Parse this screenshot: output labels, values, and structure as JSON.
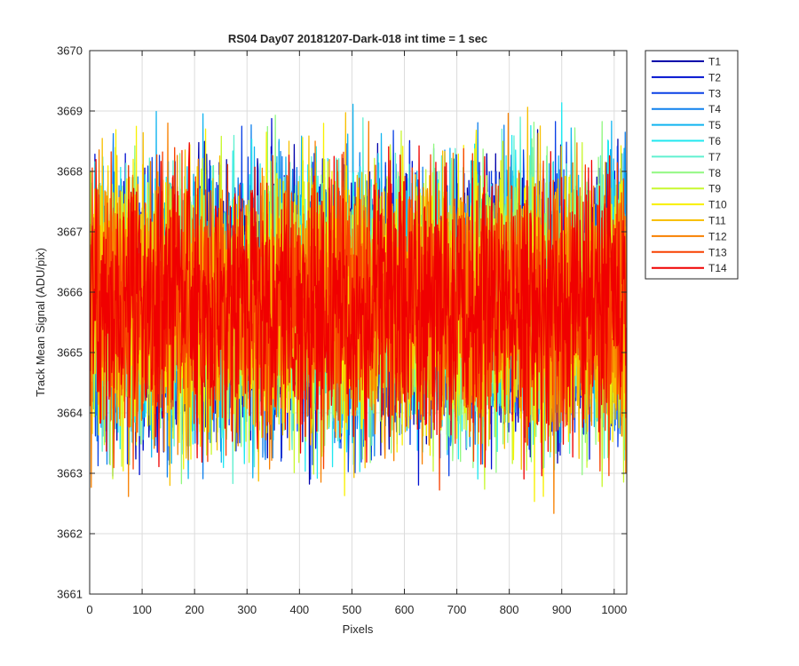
{
  "chart_data": {
    "type": "line",
    "title": "RS04 Day07 20181207-Dark-018 int time = 1 sec",
    "xlabel": "Pixels",
    "ylabel": "Track Mean Signal (ADU/pix)",
    "xlim": [
      0,
      1024
    ],
    "ylim": [
      3661,
      3670
    ],
    "xticks": [
      0,
      100,
      200,
      300,
      400,
      500,
      600,
      700,
      800,
      900,
      1000
    ],
    "yticks": [
      3661,
      3662,
      3663,
      3664,
      3665,
      3666,
      3667,
      3668,
      3669,
      3670
    ],
    "grid": true,
    "legend_position": "outside-top-right",
    "series": [
      {
        "name": "T1",
        "color": "#0000aa",
        "mean": 3665.8,
        "min": 3662.1,
        "max": 3669.85
      },
      {
        "name": "T2",
        "color": "#0010d0",
        "mean": 3665.8,
        "min": 3662.8,
        "max": 3669.2
      },
      {
        "name": "T3",
        "color": "#0a40e6",
        "mean": 3665.8,
        "min": 3662.9,
        "max": 3669.0
      },
      {
        "name": "T4",
        "color": "#0f80ee",
        "mean": 3665.8,
        "min": 3662.9,
        "max": 3669.1
      },
      {
        "name": "T5",
        "color": "#10b4f0",
        "mean": 3665.8,
        "min": 3662.8,
        "max": 3669.2
      },
      {
        "name": "T6",
        "color": "#20e8f0",
        "mean": 3665.8,
        "min": 3662.2,
        "max": 3669.6
      },
      {
        "name": "T7",
        "color": "#60f0d0",
        "mean": 3665.8,
        "min": 3662.3,
        "max": 3669.1
      },
      {
        "name": "T8",
        "color": "#90f880",
        "mean": 3665.8,
        "min": 3662.7,
        "max": 3669.0
      },
      {
        "name": "T9",
        "color": "#c8f830",
        "mean": 3665.8,
        "min": 3662.4,
        "max": 3669.4
      },
      {
        "name": "T10",
        "color": "#f8f000",
        "mean": 3665.8,
        "min": 3662.0,
        "max": 3669.0
      },
      {
        "name": "T11",
        "color": "#f8c000",
        "mean": 3665.8,
        "min": 3662.4,
        "max": 3669.1
      },
      {
        "name": "T12",
        "color": "#f88000",
        "mean": 3665.8,
        "min": 3662.1,
        "max": 3669.2
      },
      {
        "name": "T13",
        "color": "#f84000",
        "mean": 3665.8,
        "min": 3662.3,
        "max": 3668.4
      },
      {
        "name": "T14",
        "color": "#f00000",
        "mean": 3665.8,
        "min": 3661.9,
        "max": 3668.5
      }
    ]
  }
}
